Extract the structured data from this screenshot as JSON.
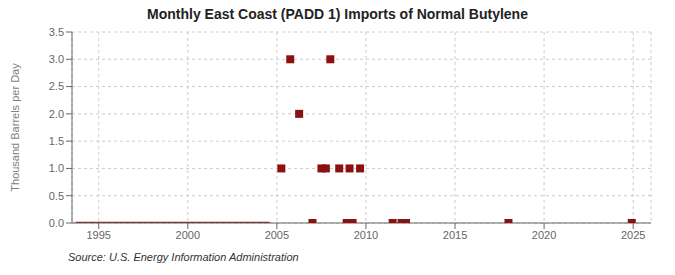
{
  "chart_data": {
    "type": "scatter",
    "title": "Monthly East Coast (PADD 1) Imports of Normal Butylene",
    "ylabel": "Thousand Barrels per Day",
    "annotation": "Source: U.S. Energy Information Administration",
    "xlim": [
      1993.5,
      2026
    ],
    "ylim": [
      0,
      3.5
    ],
    "xticks": [
      1995,
      2000,
      2005,
      2010,
      2015,
      2020,
      2025
    ],
    "yticks": [
      {
        "value": 0,
        "label": "0.0"
      },
      0.5,
      {
        "value": 1,
        "label": "1.0"
      },
      1.5,
      {
        "value": 2,
        "label": "2.0"
      },
      2.5,
      {
        "value": 3,
        "label": "3.0"
      },
      3.5
    ],
    "grid": true,
    "series": [
      {
        "type": "line",
        "color": "#8b1010",
        "line_style": "solid",
        "x": [
          1993.7,
          2004.6
        ],
        "values": [
          0.0,
          0.0
        ]
      },
      {
        "type": "scatter",
        "color": "#8b1010",
        "marker": "square",
        "x": [
          2005.25,
          2005.75,
          2006.25,
          2007.0,
          2007.5,
          2007.75,
          2008.0,
          2008.5,
          2008.92,
          2009.08,
          2009.25,
          2009.67,
          2011.5,
          2012.0,
          2012.25,
          2018.0,
          2024.92
        ],
        "values": [
          1.0,
          3.0,
          2.0,
          0.0,
          1.0,
          1.0,
          3.0,
          1.0,
          0.0,
          1.0,
          0.0,
          1.0,
          0.0,
          0.0,
          0.0,
          0.0,
          0.0
        ]
      }
    ]
  }
}
